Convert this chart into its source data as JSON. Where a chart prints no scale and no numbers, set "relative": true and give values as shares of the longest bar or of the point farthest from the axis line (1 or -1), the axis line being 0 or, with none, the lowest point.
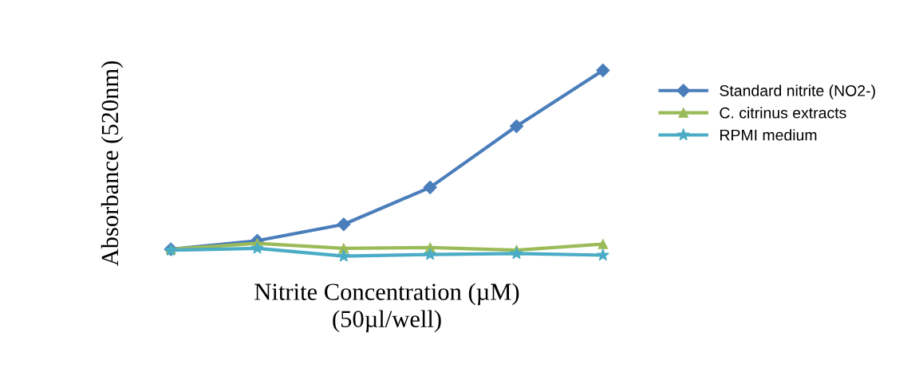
{
  "chart_data": {
    "type": "line",
    "relative": true,
    "xlabel": "Nitrite Concentration (µM)\n(50µl/well)",
    "ylabel": "Absorbance (520nm)",
    "categories": [
      null,
      null,
      null,
      null,
      null,
      null
    ],
    "legend": "right",
    "grid": false,
    "line_style": "solid",
    "series": [
      {
        "name": "Standard nitrite (NO2-)",
        "color": "#4a7ebb",
        "marker": "diamond",
        "values": [
          0.037,
          0.083,
          0.171,
          0.37,
          0.699,
          1
        ]
      },
      {
        "name": "C. citrinus extracts",
        "color": "#9bbb59",
        "marker": "triangle",
        "values": [
          0.037,
          0.069,
          0.042,
          0.046,
          0.032,
          0.065
        ]
      },
      {
        "name": "RPMI medium",
        "color": "#4bacc6",
        "marker": "star",
        "values": [
          0.032,
          0.042,
          0,
          0.009,
          0.014,
          0.005
        ]
      }
    ]
  }
}
